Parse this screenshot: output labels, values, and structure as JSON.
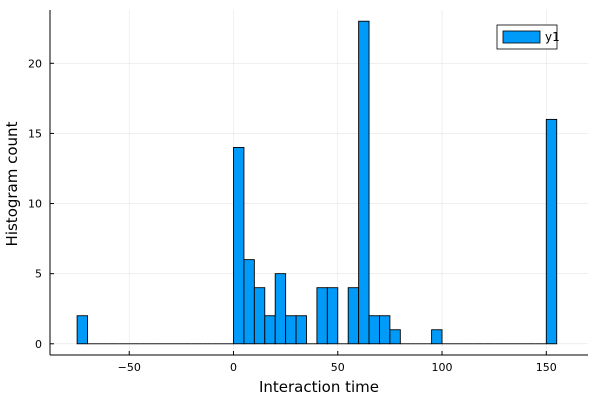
{
  "chart_data": {
    "type": "bar",
    "subtype": "histogram",
    "xlabel": "Interaction time",
    "ylabel": "Histogram count",
    "xlim": [
      -88,
      170
    ],
    "ylim": [
      -0.8,
      23.8
    ],
    "xticks": [
      -50,
      0,
      50,
      100,
      150
    ],
    "yticks": [
      0,
      5,
      10,
      15,
      20
    ],
    "grid": true,
    "legend": {
      "position": "top-right",
      "entries": [
        "y1"
      ]
    },
    "bin_width": 5,
    "bins": [
      {
        "x0": -75,
        "x1": -70,
        "count": 2
      },
      {
        "x0": -70,
        "x1": -65,
        "count": 0
      },
      {
        "x0": -65,
        "x1": -60,
        "count": 0
      },
      {
        "x0": -60,
        "x1": -55,
        "count": 0
      },
      {
        "x0": -55,
        "x1": -50,
        "count": 0
      },
      {
        "x0": -50,
        "x1": -45,
        "count": 0
      },
      {
        "x0": -45,
        "x1": -40,
        "count": 0
      },
      {
        "x0": -40,
        "x1": -35,
        "count": 0
      },
      {
        "x0": -35,
        "x1": -30,
        "count": 0
      },
      {
        "x0": -30,
        "x1": -25,
        "count": 0
      },
      {
        "x0": -25,
        "x1": -20,
        "count": 0
      },
      {
        "x0": -20,
        "x1": -15,
        "count": 0
      },
      {
        "x0": -15,
        "x1": -10,
        "count": 0
      },
      {
        "x0": -10,
        "x1": -5,
        "count": 0
      },
      {
        "x0": -5,
        "x1": 0,
        "count": 0
      },
      {
        "x0": 0,
        "x1": 5,
        "count": 14
      },
      {
        "x0": 5,
        "x1": 10,
        "count": 6
      },
      {
        "x0": 10,
        "x1": 15,
        "count": 4
      },
      {
        "x0": 15,
        "x1": 20,
        "count": 2
      },
      {
        "x0": 20,
        "x1": 25,
        "count": 5
      },
      {
        "x0": 25,
        "x1": 30,
        "count": 2
      },
      {
        "x0": 30,
        "x1": 35,
        "count": 2
      },
      {
        "x0": 35,
        "x1": 40,
        "count": 0
      },
      {
        "x0": 40,
        "x1": 45,
        "count": 4
      },
      {
        "x0": 45,
        "x1": 50,
        "count": 4
      },
      {
        "x0": 50,
        "x1": 55,
        "count": 0
      },
      {
        "x0": 55,
        "x1": 60,
        "count": 4
      },
      {
        "x0": 60,
        "x1": 65,
        "count": 23
      },
      {
        "x0": 65,
        "x1": 70,
        "count": 2
      },
      {
        "x0": 70,
        "x1": 75,
        "count": 2
      },
      {
        "x0": 75,
        "x1": 80,
        "count": 1
      },
      {
        "x0": 80,
        "x1": 85,
        "count": 0
      },
      {
        "x0": 85,
        "x1": 90,
        "count": 0
      },
      {
        "x0": 90,
        "x1": 95,
        "count": 0
      },
      {
        "x0": 95,
        "x1": 100,
        "count": 1
      },
      {
        "x0": 100,
        "x1": 105,
        "count": 0
      },
      {
        "x0": 105,
        "x1": 110,
        "count": 0
      },
      {
        "x0": 110,
        "x1": 115,
        "count": 0
      },
      {
        "x0": 115,
        "x1": 120,
        "count": 0
      },
      {
        "x0": 120,
        "x1": 125,
        "count": 0
      },
      {
        "x0": 125,
        "x1": 130,
        "count": 0
      },
      {
        "x0": 130,
        "x1": 135,
        "count": 0
      },
      {
        "x0": 135,
        "x1": 140,
        "count": 0
      },
      {
        "x0": 140,
        "x1": 145,
        "count": 0
      },
      {
        "x0": 145,
        "x1": 150,
        "count": 0
      },
      {
        "x0": 150,
        "x1": 155,
        "count": 16
      }
    ],
    "series": [
      {
        "name": "y1",
        "color": "#009af9"
      }
    ]
  }
}
